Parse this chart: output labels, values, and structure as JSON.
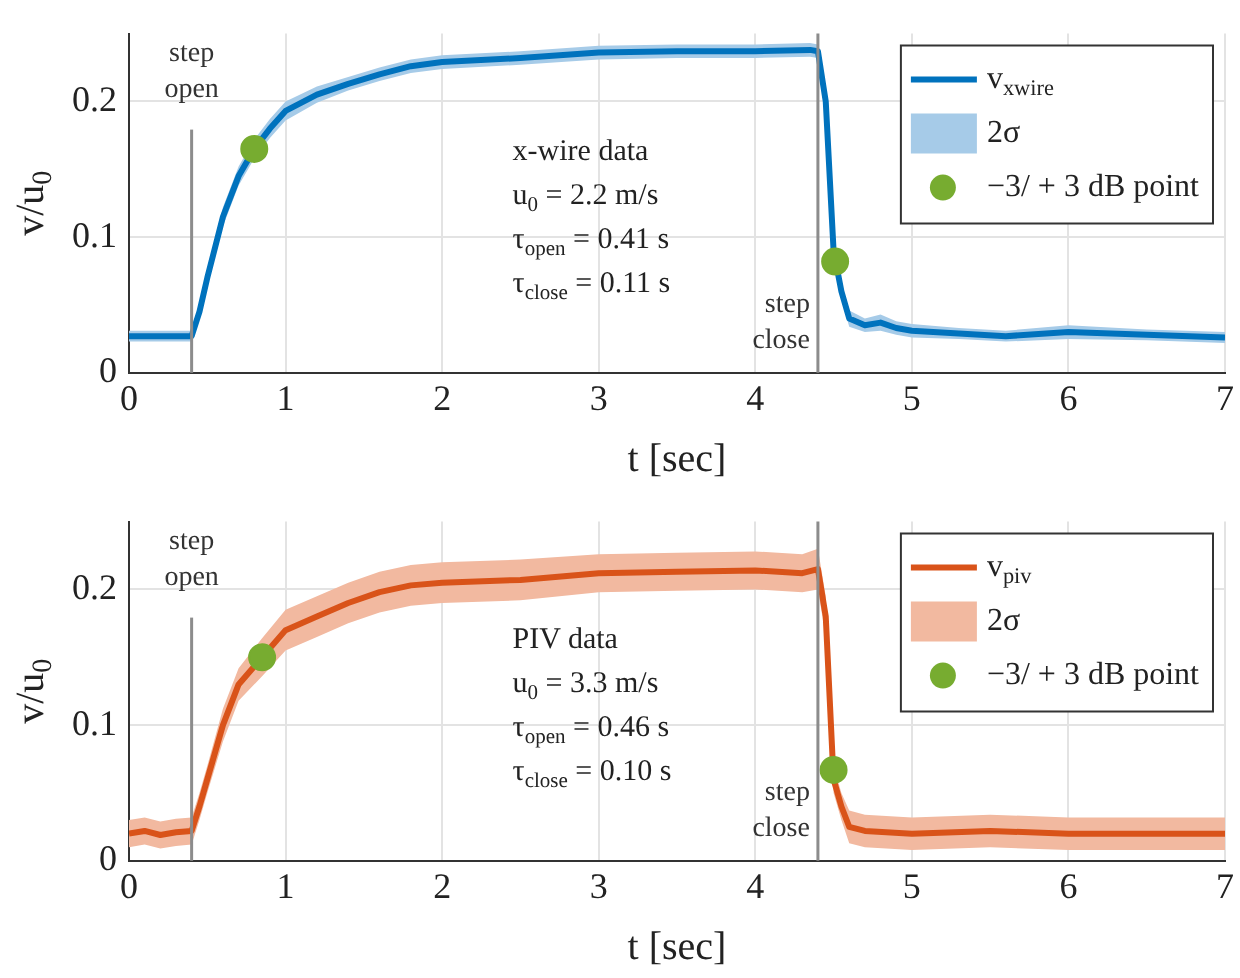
{
  "chart_data": [
    {
      "type": "line",
      "xlabel": "t [sec]",
      "ylabel": "v/u$_{0}$",
      "xlim": [
        0,
        7
      ],
      "xticks": [
        0,
        1,
        2,
        3,
        4,
        5,
        6,
        7
      ],
      "ylim": [
        0,
        0.25
      ],
      "yticks": [
        0,
        0.1,
        0.2
      ],
      "grid": true,
      "legend": "top right",
      "marker": "none",
      "line_style": "solid",
      "annotations": [
        "x-wire data",
        "u$_{0}$ = 2.2 m/s",
        "τ$_{open}$ = 0.41 s",
        "τ$_{close}$ = 0.11 s"
      ],
      "ref_lines": [
        {
          "axis": "x",
          "value": 0.4,
          "label": "step open",
          "color": "#8c8c8c"
        },
        {
          "axis": "x",
          "value": 4.4,
          "label": "step close",
          "color": "#8c8c8c"
        }
      ],
      "series": [
        {
          "name": "v$_{xwire}$",
          "type": "line",
          "color": "#0072bd",
          "x": [
            0,
            0.2,
            0.4,
            0.45,
            0.5,
            0.6,
            0.7,
            0.8,
            0.9,
            1.0,
            1.2,
            1.4,
            1.6,
            1.8,
            2.0,
            2.5,
            3.0,
            3.5,
            4.0,
            4.35,
            4.4,
            4.45,
            4.5,
            4.55,
            4.6,
            4.7,
            4.8,
            4.9,
            5.0,
            5.3,
            5.6,
            6.0,
            6.5,
            7.0
          ],
          "values": [
            0.027,
            0.027,
            0.027,
            0.045,
            0.07,
            0.115,
            0.145,
            0.165,
            0.18,
            0.193,
            0.205,
            0.213,
            0.22,
            0.226,
            0.229,
            0.232,
            0.236,
            0.237,
            0.237,
            0.238,
            0.237,
            0.2,
            0.09,
            0.06,
            0.04,
            0.035,
            0.037,
            0.033,
            0.031,
            0.029,
            0.027,
            0.03,
            0.028,
            0.026
          ],
          "lower": [
            0.023,
            0.023,
            0.023,
            0.04,
            0.064,
            0.108,
            0.138,
            0.158,
            0.173,
            0.186,
            0.199,
            0.208,
            0.215,
            0.221,
            0.224,
            0.227,
            0.231,
            0.232,
            0.232,
            0.233,
            0.232,
            0.19,
            0.082,
            0.054,
            0.034,
            0.03,
            0.031,
            0.028,
            0.026,
            0.025,
            0.023,
            0.025,
            0.024,
            0.022
          ],
          "upper": [
            0.031,
            0.031,
            0.031,
            0.05,
            0.076,
            0.122,
            0.152,
            0.172,
            0.187,
            0.2,
            0.211,
            0.218,
            0.225,
            0.231,
            0.234,
            0.237,
            0.241,
            0.242,
            0.242,
            0.243,
            0.242,
            0.21,
            0.098,
            0.066,
            0.046,
            0.04,
            0.043,
            0.038,
            0.036,
            0.033,
            0.031,
            0.035,
            0.032,
            0.03
          ]
        },
        {
          "name": "2σ",
          "type": "area",
          "color": "#a6cbe8"
        },
        {
          "name": "−3/ + 3 dB point",
          "type": "scatter",
          "color": "#77ac30",
          "marker": "circle",
          "x": [
            0.8,
            4.51
          ],
          "values": [
            0.165,
            0.082
          ]
        }
      ]
    },
    {
      "type": "line",
      "xlabel": "t [sec]",
      "ylabel": "v/u$_{0}$",
      "xlim": [
        0,
        7
      ],
      "xticks": [
        0,
        1,
        2,
        3,
        4,
        5,
        6,
        7
      ],
      "ylim": [
        0,
        0.25
      ],
      "yticks": [
        0,
        0.1,
        0.2
      ],
      "grid": true,
      "legend": "top right",
      "marker": "none",
      "line_style": "solid",
      "annotations": [
        "PIV data",
        "u$_{0}$ = 3.3 m/s",
        "τ$_{open}$ = 0.46 s",
        "τ$_{close}$ = 0.10 s"
      ],
      "ref_lines": [
        {
          "axis": "x",
          "value": 0.4,
          "label": "step open",
          "color": "#8c8c8c"
        },
        {
          "axis": "x",
          "value": 4.4,
          "label": "step close",
          "color": "#8c8c8c"
        }
      ],
      "series": [
        {
          "name": "v$_{piv}$",
          "type": "line",
          "color": "#d95319",
          "x": [
            0,
            0.1,
            0.2,
            0.3,
            0.4,
            0.45,
            0.5,
            0.6,
            0.7,
            0.85,
            1.0,
            1.2,
            1.4,
            1.6,
            1.8,
            2.0,
            2.5,
            3.0,
            3.5,
            4.0,
            4.3,
            4.4,
            4.45,
            4.5,
            4.55,
            4.6,
            4.7,
            5.0,
            5.5,
            6.0,
            6.5,
            7.0
          ],
          "values": [
            0.02,
            0.022,
            0.019,
            0.021,
            0.022,
            0.04,
            0.06,
            0.1,
            0.13,
            0.15,
            0.17,
            0.18,
            0.19,
            0.198,
            0.203,
            0.205,
            0.207,
            0.212,
            0.213,
            0.214,
            0.212,
            0.215,
            0.18,
            0.06,
            0.04,
            0.025,
            0.022,
            0.02,
            0.022,
            0.02,
            0.02,
            0.02
          ],
          "lower": [
            0.01,
            0.012,
            0.009,
            0.011,
            0.012,
            0.03,
            0.05,
            0.088,
            0.118,
            0.136,
            0.155,
            0.165,
            0.175,
            0.183,
            0.188,
            0.19,
            0.192,
            0.198,
            0.199,
            0.2,
            0.198,
            0.2,
            0.165,
            0.05,
            0.03,
            0.013,
            0.01,
            0.008,
            0.01,
            0.008,
            0.008,
            0.008
          ],
          "upper": [
            0.03,
            0.032,
            0.029,
            0.031,
            0.032,
            0.05,
            0.07,
            0.112,
            0.142,
            0.164,
            0.185,
            0.195,
            0.205,
            0.213,
            0.218,
            0.22,
            0.222,
            0.226,
            0.227,
            0.228,
            0.226,
            0.23,
            0.195,
            0.07,
            0.05,
            0.037,
            0.034,
            0.032,
            0.034,
            0.032,
            0.032,
            0.032
          ]
        },
        {
          "name": "2σ",
          "type": "area",
          "color": "#f2b9a0"
        },
        {
          "name": "−3/ + 3 dB point",
          "type": "scatter",
          "color": "#77ac30",
          "marker": "circle",
          "x": [
            0.85,
            4.5
          ],
          "values": [
            0.15,
            0.067
          ]
        }
      ]
    }
  ]
}
